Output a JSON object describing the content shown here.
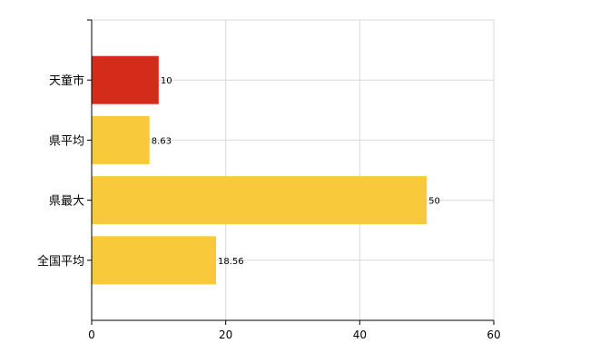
{
  "chart_data": {
    "type": "bar",
    "orientation": "horizontal",
    "categories": [
      "天童市",
      "県平均",
      "県最大",
      "全国平均"
    ],
    "values": [
      10,
      8.63,
      50,
      18.56
    ],
    "value_labels": [
      "10",
      "8.63",
      "50",
      "18.56"
    ],
    "bar_colors": [
      "#d42c1a",
      "#f9c93c",
      "#f9c93c",
      "#f9c93c"
    ],
    "title": "",
    "xlabel": "",
    "ylabel": "",
    "xlim": [
      0,
      60
    ],
    "xticks": [
      0,
      20,
      40,
      60
    ],
    "xtick_labels": [
      "0",
      "20",
      "40",
      "60"
    ],
    "grid": true,
    "legend": "none"
  }
}
